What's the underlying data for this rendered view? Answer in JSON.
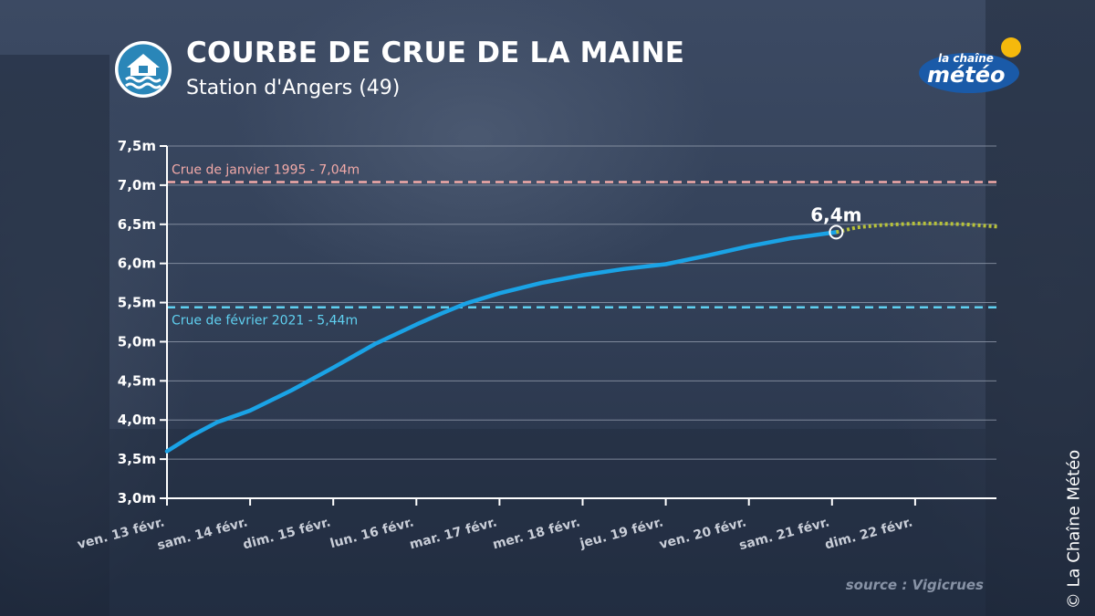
{
  "header": {
    "title": "COURBE DE CRUE DE LA MAINE",
    "subtitle": "Station d'Angers (49)"
  },
  "logo": {
    "line1": "la chaîne",
    "line2": "météo"
  },
  "copyright": "© La Chaîne Météo",
  "source": "source : Vigicrues",
  "colors": {
    "observed": "#1aa3e6",
    "forecast": "#b8c23a",
    "ref_1995": "#f2aaa8",
    "ref_2021": "#5fd0f0",
    "grid": "#9aa3b3",
    "axis": "#ffffff"
  },
  "chart_data": {
    "type": "line",
    "title": "COURBE DE CRUE DE LA MAINE",
    "subtitle": "Station d'Angers (49)",
    "xlabel": "",
    "ylabel": "",
    "categories": [
      "ven. 13 févr.",
      "sam. 14 févr.",
      "dim. 15 févr.",
      "lun. 16 févr.",
      "mar. 17 févr.",
      "mer. 18 févr.",
      "jeu. 19 févr.",
      "ven. 20 févr.",
      "sam. 21 févr.",
      "dim. 22 févr."
    ],
    "ylim": [
      3.0,
      7.5
    ],
    "yticks": [
      3.0,
      3.5,
      4.0,
      4.5,
      5.0,
      5.5,
      6.0,
      6.5,
      7.0,
      7.5
    ],
    "ytick_labels": [
      "3,0m",
      "3,5m",
      "4,0m",
      "4,5m",
      "5,0m",
      "5,5m",
      "6,0m",
      "6,5m",
      "7,0m",
      "7,5m"
    ],
    "grid": true,
    "series": [
      {
        "x": [
          0,
          0.3,
          0.6,
          1.0,
          1.5,
          2.0,
          2.5,
          3.0,
          3.3,
          3.6,
          4.0,
          4.5,
          5.0,
          5.5,
          6.0,
          6.5,
          7.0,
          7.5,
          8.05
        ],
        "y": [
          3.6,
          3.8,
          3.97,
          4.12,
          4.38,
          4.67,
          4.97,
          5.22,
          5.36,
          5.49,
          5.62,
          5.75,
          5.85,
          5.93,
          5.99,
          6.1,
          6.22,
          6.32,
          6.4
        ],
        "style": "solid"
      },
      {
        "x": [
          8.05,
          8.3,
          8.6,
          9.0,
          9.3,
          9.6,
          10.0
        ],
        "y": [
          6.4,
          6.46,
          6.49,
          6.51,
          6.51,
          6.5,
          6.47
        ],
        "style": "dotted"
      }
    ],
    "reference_lines": [
      {
        "label": "Crue de janvier 1995 - 7,04m",
        "value": 7.04
      },
      {
        "label": "Crue de février 2021 - 5,44m",
        "value": 5.44
      }
    ],
    "annotations": [
      {
        "label": "6,4m",
        "x": 8.05,
        "y": 6.4
      }
    ]
  }
}
